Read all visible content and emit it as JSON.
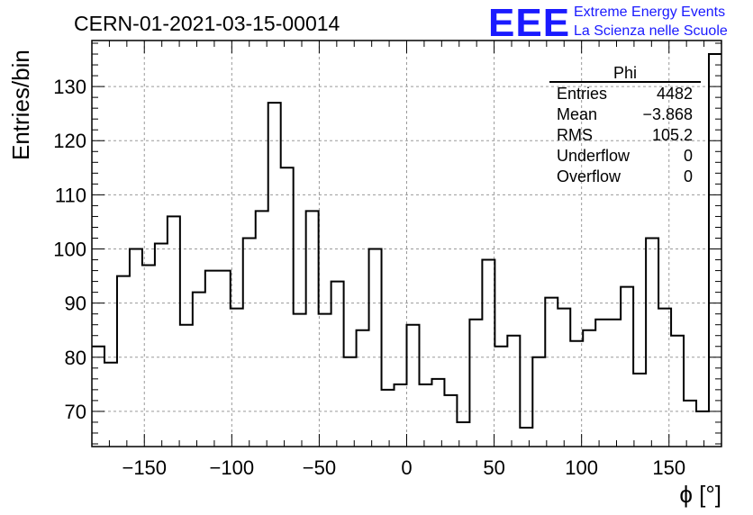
{
  "header": {
    "run_title": "CERN-01-2021-03-15-00014",
    "logo_text": "EEE",
    "logo_line1": "Extreme Energy Events",
    "logo_line2": "La Scienza nelle Scuole"
  },
  "stats": {
    "name": "Phi",
    "rows": [
      {
        "label": "Entries",
        "value": "4482"
      },
      {
        "label": "Mean",
        "value": "−3.868"
      },
      {
        "label": "RMS",
        "value": "105.2"
      },
      {
        "label": "Underflow",
        "value": "0"
      },
      {
        "label": "Overflow",
        "value": "0"
      }
    ]
  },
  "chart_data": {
    "type": "histogram",
    "title": "CERN-01-2021-03-15-00014",
    "xlabel": "ϕ [°]",
    "ylabel": "Entries/bin",
    "xlim": [
      -180,
      180
    ],
    "ylim": [
      63.5,
      138.5
    ],
    "bin_width": 7.2,
    "bin_edges_start": -180,
    "values": [
      82,
      79,
      95,
      100,
      97,
      101,
      106,
      86,
      92,
      96,
      96,
      89,
      102,
      107,
      127,
      115,
      88,
      107,
      88,
      94,
      80,
      85,
      100,
      74,
      75,
      86,
      75,
      76,
      73,
      68,
      87,
      98,
      82,
      84,
      67,
      80,
      91,
      89,
      83,
      85,
      87,
      87,
      93,
      77,
      102,
      89,
      84,
      72,
      70,
      136
    ],
    "x_ticks": [
      -150,
      -100,
      -50,
      0,
      50,
      100,
      150
    ],
    "x_tick_labels": [
      "−150",
      "−100",
      "−50",
      "0",
      "50",
      "100",
      "150"
    ],
    "y_ticks": [
      70,
      80,
      90,
      100,
      110,
      120,
      130
    ],
    "y_tick_labels": [
      "70",
      "80",
      "90",
      "100",
      "110",
      "120",
      "130"
    ],
    "grid": true,
    "line_color": "#000000",
    "logo_color": "#1a1aff"
  }
}
